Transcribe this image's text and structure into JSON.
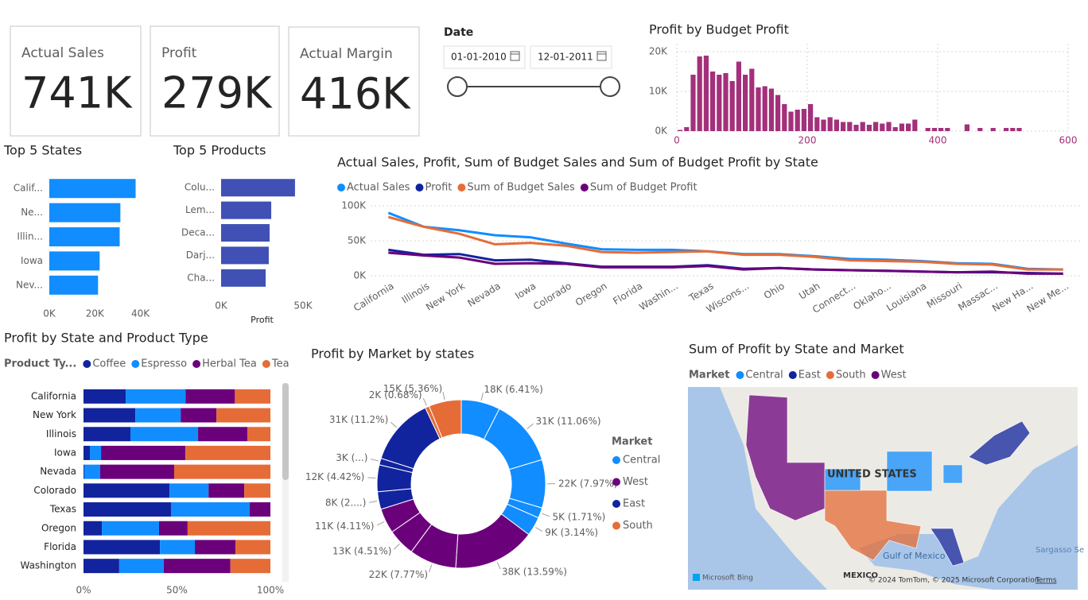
{
  "cards": [
    {
      "label": "Actual Sales",
      "value": "741K"
    },
    {
      "label": "Profit",
      "value": "279K"
    },
    {
      "label": "Actual Margin",
      "value": "416K"
    }
  ],
  "date_filter": {
    "label": "Date",
    "start": "01-01-2010",
    "end": "12-01-2011"
  },
  "chart_data": [
    {
      "type": "histogram",
      "title": "Profit by Budget Profit",
      "color": "#a3307a",
      "bins": [
        0,
        10,
        20,
        30,
        40,
        50,
        60,
        70,
        80,
        90,
        100,
        110,
        120,
        130,
        140,
        150,
        160,
        170,
        180,
        190,
        200,
        210,
        220,
        230,
        240,
        250,
        260,
        270,
        280,
        290,
        300,
        310,
        320,
        330,
        340,
        350,
        360,
        370,
        380,
        390,
        400,
        410,
        420,
        430,
        440,
        450,
        460,
        470,
        480,
        490,
        500,
        510,
        520,
        530,
        540
      ],
      "counts": [
        300,
        1000,
        14200,
        18800,
        19000,
        15000,
        14200,
        14600,
        12600,
        17500,
        14200,
        15700,
        11000,
        11300,
        10700,
        9100,
        6800,
        4900,
        5400,
        5600,
        6800,
        3500,
        2900,
        3500,
        2900,
        2300,
        2300,
        1600,
        2300,
        1600,
        2300,
        1900,
        2300,
        1000,
        1900,
        1900,
        2900,
        0,
        800,
        800,
        800,
        800,
        0,
        0,
        1700,
        0,
        800,
        0,
        800,
        0,
        800,
        800,
        800,
        0
      ],
      "xlim": [
        0,
        600
      ],
      "xticks": [
        0,
        200,
        400,
        600
      ],
      "ylim": [
        0,
        22000
      ],
      "yticks": [
        {
          "value": 0,
          "label": "0K"
        },
        {
          "value": 10000,
          "label": "10K"
        },
        {
          "value": 20000,
          "label": "20K"
        }
      ],
      "grid": true
    },
    {
      "type": "hbar",
      "title": "Top 5 States",
      "color": "#118dff",
      "categories": [
        "Calif...",
        "Ne...",
        "Illin...",
        "Iowa",
        "Nev..."
      ],
      "values": [
        37900,
        31200,
        30900,
        22100,
        21400
      ],
      "xlim": [
        0,
        44000
      ],
      "xticks": [
        {
          "value": 0,
          "label": "0K"
        },
        {
          "value": 20000,
          "label": "20K"
        },
        {
          "value": 40000,
          "label": "40K"
        }
      ]
    },
    {
      "type": "hbar",
      "title": "Top 5 Products",
      "color": "#4150b5",
      "x_label": "Profit",
      "categories": [
        "Colu...",
        "Lem...",
        "Deca...",
        "Darj...",
        "Cha..."
      ],
      "values": [
        45100,
        30600,
        29600,
        29100,
        27200
      ],
      "xlim": [
        0,
        50000
      ],
      "xticks": [
        {
          "value": 0,
          "label": "0K"
        },
        {
          "value": 50000,
          "label": "50K"
        }
      ]
    },
    {
      "type": "line",
      "title": "Actual Sales, Profit, Sum of Budget Sales and Sum of Budget Profit by State",
      "categories": [
        "California",
        "Illinois",
        "New York",
        "Nevada",
        "Iowa",
        "Colorado",
        "Oregon",
        "Florida",
        "Washin...",
        "Texas",
        "Wiscons...",
        "Ohio",
        "Utah",
        "Connect...",
        "Oklaho...",
        "Louisiana",
        "Missouri",
        "Massac...",
        "New Ha...",
        "New Me..."
      ],
      "series": [
        {
          "name": "Actual Sales",
          "color": "#118dff",
          "values": [
            90000,
            70000,
            65000,
            58000,
            55000,
            46000,
            38000,
            37000,
            37000,
            35000,
            31000,
            31000,
            28000,
            24000,
            23000,
            21000,
            18000,
            17000,
            10000,
            9000
          ]
        },
        {
          "name": "Profit",
          "color": "#12239e",
          "values": [
            37000,
            30000,
            31000,
            22000,
            23000,
            18000,
            13000,
            13000,
            13000,
            15000,
            10000,
            11000,
            9000,
            8000,
            7000,
            6000,
            5000,
            5000,
            4000,
            3000
          ]
        },
        {
          "name": "Sum of Budget Sales",
          "color": "#e66c37",
          "values": [
            84000,
            70000,
            60000,
            45000,
            47000,
            43000,
            34000,
            33000,
            34000,
            35000,
            30000,
            30000,
            27000,
            22000,
            21000,
            20000,
            17000,
            16000,
            9000,
            9000
          ]
        },
        {
          "name": "Sum of Budget Profit",
          "color": "#6b007b",
          "values": [
            33000,
            29000,
            26000,
            17000,
            18000,
            17000,
            12000,
            12000,
            12000,
            14000,
            9000,
            11000,
            9000,
            8000,
            7000,
            6000,
            5000,
            6000,
            3000,
            3000
          ]
        }
      ],
      "ylim": [
        0,
        105000
      ],
      "yticks": [
        {
          "value": 0,
          "label": "0K"
        },
        {
          "value": 50000,
          "label": "50K"
        },
        {
          "value": 100000,
          "label": "100K"
        }
      ],
      "grid": true
    },
    {
      "type": "stacked_hbar",
      "title": "Profit by State and Product Type",
      "legend_title": "Product Ty...",
      "categories": [
        "California",
        "New York",
        "Illinois",
        "Iowa",
        "Nevada",
        "Colorado",
        "Texas",
        "Oregon",
        "Florida",
        "Washington"
      ],
      "series": [
        {
          "name": "Coffee",
          "color": "#12239e",
          "values": [
            22.6,
            27.7,
            25.1,
            3.4,
            0.4,
            46,
            46.8,
            9.8,
            40.9,
            19.1
          ]
        },
        {
          "name": "Espresso",
          "color": "#118dff",
          "values": [
            32,
            24.3,
            36.2,
            6,
            8.5,
            20.9,
            42.1,
            30.6,
            18.7,
            23.8
          ]
        },
        {
          "name": "Herbal Tea",
          "color": "#6b007b",
          "values": [
            26.4,
            19.1,
            26.4,
            45.1,
            39.6,
            19.1,
            11.1,
            15.3,
            21.7,
            35.7
          ]
        },
        {
          "name": "Tea",
          "color": "#e66c37",
          "values": [
            19,
            28.9,
            12.3,
            45.5,
            51.5,
            14,
            0,
            44.3,
            18.7,
            21.4
          ]
        }
      ],
      "xlim": [
        0,
        100
      ],
      "xticks": [
        {
          "value": 0,
          "label": "0%"
        },
        {
          "value": 50,
          "label": "50%"
        },
        {
          "value": 100,
          "label": "100%"
        }
      ]
    },
    {
      "type": "donut",
      "title": "Profit by Market by states",
      "legend_title": "Market",
      "legend": [
        {
          "name": "Central",
          "color": "#118dff"
        },
        {
          "name": "West",
          "color": "#6b007b"
        },
        {
          "name": "East",
          "color": "#12239e"
        },
        {
          "name": "South",
          "color": "#e66c37"
        }
      ],
      "values": [
        6.41,
        11.06,
        7.97,
        1.71,
        3.14,
        13.59,
        7.77,
        4.51,
        4.11,
        2.9,
        4.42,
        1.1,
        11.2,
        0.68,
        5.36
      ],
      "value_labels": [
        "18K (6.41%)",
        "31K (11.06%)",
        "22K (7.97%)",
        "5K (1.71%)",
        "9K (3.14%)",
        "38K (13.59%)",
        "22K (7.77%)",
        "13K (4.51%)",
        "11K (4.11%)",
        "8K (2....)",
        "12K (4.42%)",
        "3K (...)",
        "31K (11.2%)",
        "2K (0.68%)",
        "15K (5.36%)"
      ],
      "colors": [
        "#118dff",
        "#118dff",
        "#118dff",
        "#118dff",
        "#118dff",
        "#6b007b",
        "#6b007b",
        "#6b007b",
        "#6b007b",
        "#12239e",
        "#12239e",
        "#12239e",
        "#12239e",
        "#e66c37",
        "#e66c37"
      ]
    }
  ],
  "map": {
    "title": "Sum of Profit by State and Market",
    "legend_title": "Market",
    "legend": [
      {
        "name": "Central",
        "color": "#118dff"
      },
      {
        "name": "East",
        "color": "#12239e"
      },
      {
        "name": "South",
        "color": "#e66c37"
      },
      {
        "name": "West",
        "color": "#6b007b"
      }
    ],
    "country": "UNITED STATES",
    "gulf": "Gulf of Mexico",
    "mexico": "MEXICO",
    "sea": "Sargasso Se",
    "logo": "Microsoft Bing",
    "attribution": "© 2024 TomTom, © 2025 Microsoft Corporation",
    "terms": "Terms"
  }
}
